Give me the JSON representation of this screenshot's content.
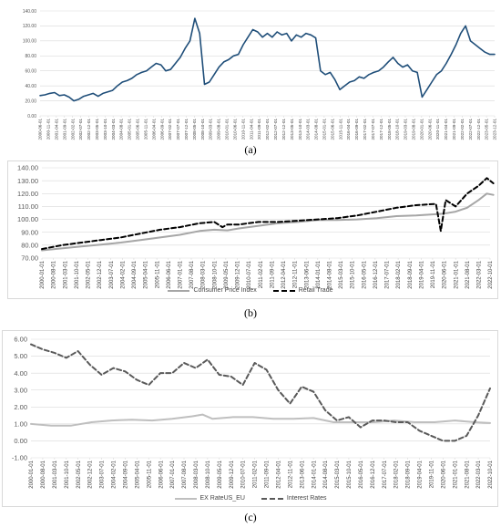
{
  "captions": {
    "a": "(a)",
    "b": "(b)",
    "c": "(c)"
  },
  "chart_data": [
    {
      "type": "line",
      "id": "a",
      "title": "",
      "ylim": [
        0,
        140
      ],
      "yticks": [
        0,
        20,
        40,
        60,
        80,
        100,
        120,
        140
      ],
      "ytick_labels": [
        "0.00",
        "20.00",
        "40.00",
        "60.00",
        "80.00",
        "100.00",
        "120.00",
        "140.00"
      ],
      "xlim": [
        "2000-06-01",
        "2023-12-01"
      ],
      "xtick_labels": [
        "2000-06-01",
        "2000-11-01",
        "2001-04-01",
        "2001-09-01",
        "2002-02-01",
        "2002-07-01",
        "2002-12-01",
        "2003-05-01",
        "2003-10-01",
        "2004-03-01",
        "2004-08-01",
        "2005-01-01",
        "2005-06-01",
        "2005-11-01",
        "2006-04-01",
        "2006-09-01",
        "2007-02-01",
        "2007-07-01",
        "2007-12-01",
        "2008-05-01",
        "2008-10-01",
        "2009-03-01",
        "2009-08-01",
        "2010-01-01",
        "2010-06-01",
        "2010-11-01",
        "2011-04-01",
        "2011-09-01",
        "2012-02-01",
        "2012-07-01",
        "2012-12-01",
        "2013-05-01",
        "2013-10-01",
        "2014-03-01",
        "2014-08-01",
        "2015-01-01",
        "2015-06-01",
        "2015-11-01",
        "2016-04-01",
        "2016-09-01",
        "2017-02-01",
        "2017-07-01",
        "2017-12-01",
        "2018-05-01",
        "2018-10-01",
        "2019-03-01",
        "2019-08-01",
        "2020-01-01",
        "2020-06-01",
        "2020-11-01",
        "2021-04-01",
        "2021-09-01",
        "2022-02-01",
        "2022-07-01",
        "2022-12-01",
        "2023-05-01",
        "2023-12-01"
      ],
      "grid": true,
      "series": [
        {
          "name": "",
          "color": "#1f4e79",
          "x": [
            "2000-06-01",
            "2000-09-01",
            "2000-12-01",
            "2001-03-01",
            "2001-06-01",
            "2001-09-01",
            "2001-12-01",
            "2002-03-01",
            "2002-06-01",
            "2002-09-01",
            "2002-12-01",
            "2003-03-01",
            "2003-06-01",
            "2003-09-01",
            "2003-12-01",
            "2004-03-01",
            "2004-06-01",
            "2004-09-01",
            "2004-12-01",
            "2005-03-01",
            "2005-06-01",
            "2005-09-01",
            "2005-12-01",
            "2006-03-01",
            "2006-06-01",
            "2006-09-01",
            "2006-12-01",
            "2007-03-01",
            "2007-06-01",
            "2007-09-01",
            "2007-12-01",
            "2008-03-01",
            "2008-06-01",
            "2008-09-01",
            "2008-12-01",
            "2009-03-01",
            "2009-06-01",
            "2009-09-01",
            "2009-12-01",
            "2010-03-01",
            "2010-06-01",
            "2010-09-01",
            "2010-12-01",
            "2011-03-01",
            "2011-06-01",
            "2011-09-01",
            "2011-12-01",
            "2012-03-01",
            "2012-06-01",
            "2012-09-01",
            "2012-12-01",
            "2013-03-01",
            "2013-06-01",
            "2013-09-01",
            "2013-12-01",
            "2014-03-01",
            "2014-06-01",
            "2014-09-01",
            "2014-12-01",
            "2015-03-01",
            "2015-06-01",
            "2015-09-01",
            "2015-12-01",
            "2016-03-01",
            "2016-06-01",
            "2016-09-01",
            "2016-12-01",
            "2017-03-01",
            "2017-06-01",
            "2017-09-01",
            "2017-12-01",
            "2018-03-01",
            "2018-06-01",
            "2018-09-01",
            "2018-12-01",
            "2019-03-01",
            "2019-06-01",
            "2019-09-01",
            "2019-12-01",
            "2020-03-01",
            "2020-06-01",
            "2020-09-01",
            "2020-12-01",
            "2021-03-01",
            "2021-06-01",
            "2021-09-01",
            "2021-12-01",
            "2022-03-01",
            "2022-06-01",
            "2022-09-01",
            "2022-12-01",
            "2023-03-01",
            "2023-06-01",
            "2023-09-01",
            "2023-12-01"
          ],
          "y": [
            27,
            28,
            30,
            31,
            27,
            28,
            25,
            20,
            22,
            26,
            28,
            30,
            26,
            30,
            32,
            34,
            40,
            45,
            47,
            50,
            55,
            58,
            60,
            65,
            70,
            68,
            60,
            62,
            70,
            78,
            90,
            100,
            130,
            110,
            42,
            45,
            55,
            65,
            72,
            75,
            80,
            82,
            95,
            105,
            115,
            112,
            105,
            110,
            105,
            112,
            108,
            110,
            100,
            108,
            105,
            110,
            108,
            104,
            60,
            55,
            58,
            48,
            35,
            40,
            45,
            47,
            52,
            50,
            55,
            58,
            60,
            65,
            72,
            78,
            70,
            65,
            68,
            60,
            58,
            25,
            35,
            45,
            55,
            60,
            70,
            82,
            95,
            110,
            120,
            100,
            95,
            90,
            85,
            82,
            82
          ]
        }
      ]
    },
    {
      "type": "line",
      "id": "b",
      "title": "",
      "ylim": [
        70,
        140
      ],
      "yticks": [
        70,
        80,
        90,
        100,
        110,
        120,
        130,
        140
      ],
      "ytick_labels": [
        "70.00",
        "80.00",
        "90.00",
        "100.00",
        "110.00",
        "120.00",
        "130.00",
        "140.00"
      ],
      "xlim": [
        "2000-01-01",
        "2022-10-01"
      ],
      "xtick_labels": [
        "2000-01-01",
        "2000-08-01",
        "2001-03-01",
        "2001-10-01",
        "2002-05-01",
        "2002-12-01",
        "2003-07-01",
        "2004-02-01",
        "2004-09-01",
        "2005-04-01",
        "2005-11-01",
        "2006-06-01",
        "2007-01-01",
        "2007-08-01",
        "2008-03-01",
        "2008-10-01",
        "2009-05-01",
        "2009-12-01",
        "2010-07-01",
        "2011-02-01",
        "2011-09-01",
        "2012-04-01",
        "2012-11-01",
        "2013-06-01",
        "2014-01-01",
        "2014-08-01",
        "2015-03-01",
        "2015-10-01",
        "2016-05-01",
        "2016-12-01",
        "2017-07-01",
        "2018-02-01",
        "2018-09-01",
        "2019-04-01",
        "2019-11-01",
        "2020-06-01",
        "2021-01-01",
        "2021-08-01",
        "2022-03-01",
        "2022-10-01"
      ],
      "grid": true,
      "legend": "bottom",
      "series": [
        {
          "name": "Consumer Price Index",
          "color": "#a6a6a6",
          "style": "solid",
          "x": [
            "2000-01-01",
            "2001-01-01",
            "2002-01-01",
            "2003-01-01",
            "2004-01-01",
            "2005-01-01",
            "2006-01-01",
            "2007-01-01",
            "2008-01-01",
            "2008-10-01",
            "2009-06-01",
            "2010-01-01",
            "2011-01-01",
            "2012-01-01",
            "2013-01-01",
            "2014-01-01",
            "2015-01-01",
            "2016-01-01",
            "2017-01-01",
            "2018-01-01",
            "2019-01-01",
            "2020-01-01",
            "2020-06-01",
            "2021-01-01",
            "2021-08-01",
            "2022-03-01",
            "2022-08-01",
            "2022-12-01"
          ],
          "y": [
            76,
            77.5,
            79,
            80.5,
            82,
            84,
            86,
            88,
            91,
            92,
            91.5,
            93,
            95,
            97,
            98,
            99.5,
            99.5,
            100,
            101,
            102.5,
            103,
            104,
            104.5,
            106,
            109,
            115,
            120,
            119
          ]
        },
        {
          "name": "Retail Trade",
          "color": "#000000",
          "style": "dashed",
          "x": [
            "2000-01-01",
            "2001-01-01",
            "2002-01-01",
            "2003-01-01",
            "2004-01-01",
            "2005-01-01",
            "2006-01-01",
            "2007-01-01",
            "2008-01-01",
            "2008-10-01",
            "2009-03-01",
            "2009-06-01",
            "2010-01-01",
            "2011-01-01",
            "2012-01-01",
            "2013-01-01",
            "2014-01-01",
            "2015-01-01",
            "2016-01-01",
            "2017-01-01",
            "2018-01-01",
            "2019-01-01",
            "2020-01-01",
            "2020-04-01",
            "2020-07-01",
            "2021-01-01",
            "2021-08-01",
            "2022-03-01",
            "2022-08-01",
            "2022-12-01"
          ],
          "y": [
            77,
            80,
            82,
            84,
            86,
            89,
            92,
            94,
            97,
            98,
            94,
            96,
            96,
            98,
            98,
            99,
            100,
            101,
            103,
            106,
            109,
            111,
            112,
            91,
            115,
            110,
            120,
            126,
            132,
            128
          ]
        }
      ]
    },
    {
      "type": "line",
      "id": "c",
      "title": "",
      "ylim": [
        -1,
        6
      ],
      "yticks": [
        -1,
        0,
        1,
        2,
        3,
        4,
        5,
        6
      ],
      "ytick_labels": [
        "-1.00",
        "0.00",
        "1.00",
        "2.00",
        "3.00",
        "4.00",
        "5.00",
        "6.00"
      ],
      "xlim": [
        "2000-01-01",
        "2022-10-01"
      ],
      "xtick_labels": [
        "2000-01-01",
        "2000-08-01",
        "2001-03-01",
        "2001-10-01",
        "2002-05-01",
        "2002-12-01",
        "2003-07-01",
        "2004-02-01",
        "2004-09-01",
        "2005-04-01",
        "2005-11-01",
        "2006-06-01",
        "2007-01-01",
        "2007-08-01",
        "2008-03-01",
        "2008-10-01",
        "2009-05-01",
        "2009-12-01",
        "2010-07-01",
        "2011-02-01",
        "2011-09-01",
        "2012-04-01",
        "2012-11-01",
        "2013-06-01",
        "2014-01-01",
        "2014-08-01",
        "2015-03-01",
        "2015-10-01",
        "2016-05-01",
        "2016-12-01",
        "2017-07-01",
        "2018-02-01",
        "2018-09-01",
        "2019-04-01",
        "2019-11-01",
        "2020-06-01",
        "2021-01-01",
        "2021-08-01",
        "2022-03-01",
        "2022-10-01"
      ],
      "grid": true,
      "legend": "bottom",
      "series": [
        {
          "name": "EX RateUS_EU",
          "color": "#bfbfbf",
          "style": "solid",
          "x": [
            "2000-01-01",
            "2001-01-01",
            "2002-01-01",
            "2003-01-01",
            "2004-01-01",
            "2005-01-01",
            "2006-01-01",
            "2007-01-01",
            "2008-01-01",
            "2008-07-01",
            "2009-01-01",
            "2010-01-01",
            "2011-01-01",
            "2012-01-01",
            "2013-01-01",
            "2014-01-01",
            "2015-01-01",
            "2016-01-01",
            "2017-01-01",
            "2018-01-01",
            "2019-01-01",
            "2020-01-01",
            "2021-01-01",
            "2022-01-01",
            "2022-10-01"
          ],
          "y": [
            1.0,
            0.9,
            0.9,
            1.1,
            1.2,
            1.25,
            1.2,
            1.3,
            1.45,
            1.55,
            1.3,
            1.4,
            1.4,
            1.3,
            1.3,
            1.35,
            1.1,
            1.1,
            1.1,
            1.2,
            1.1,
            1.1,
            1.2,
            1.1,
            1.05
          ]
        },
        {
          "name": "Interest Rates",
          "color": "#595959",
          "style": "dashed",
          "x": [
            "2000-01-01",
            "2000-08-01",
            "2001-03-01",
            "2001-10-01",
            "2002-05-01",
            "2002-12-01",
            "2003-07-01",
            "2004-02-01",
            "2004-09-01",
            "2005-04-01",
            "2005-11-01",
            "2006-06-01",
            "2007-01-01",
            "2007-08-01",
            "2008-03-01",
            "2008-10-01",
            "2009-05-01",
            "2009-12-01",
            "2010-07-01",
            "2011-02-01",
            "2011-09-01",
            "2012-04-01",
            "2012-11-01",
            "2013-06-01",
            "2014-01-01",
            "2014-08-01",
            "2015-03-01",
            "2015-10-01",
            "2016-05-01",
            "2016-12-01",
            "2017-07-01",
            "2018-02-01",
            "2018-09-01",
            "2019-04-01",
            "2019-11-01",
            "2020-06-01",
            "2021-01-01",
            "2021-08-01",
            "2022-03-01",
            "2022-10-01"
          ],
          "y": [
            5.7,
            5.4,
            5.2,
            4.9,
            5.3,
            4.5,
            3.9,
            4.3,
            4.1,
            3.6,
            3.3,
            4.0,
            4.0,
            4.6,
            4.3,
            4.8,
            3.9,
            3.8,
            3.3,
            4.6,
            4.2,
            3.0,
            2.2,
            3.2,
            2.9,
            1.8,
            1.2,
            1.4,
            0.8,
            1.2,
            1.2,
            1.1,
            1.1,
            0.6,
            0.3,
            0.0,
            0.0,
            0.3,
            1.5,
            3.1
          ]
        }
      ]
    }
  ]
}
